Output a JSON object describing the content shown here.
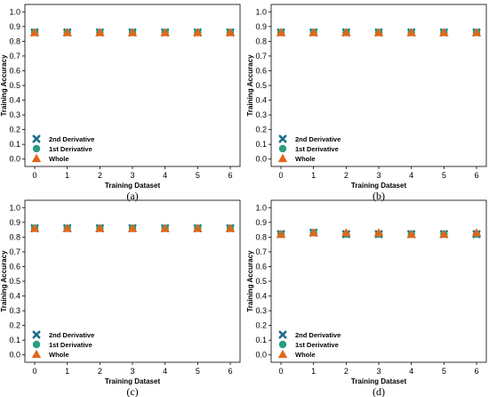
{
  "colors": {
    "second_derivative": "#1f6e8c",
    "first_derivative": "#2a9d7f",
    "whole": "#e0661a",
    "frame": "#000000"
  },
  "legend_markers": {
    "second_derivative": "x-marker",
    "first_derivative": "circle-marker",
    "whole": "triangle-marker"
  },
  "chart_data": [
    {
      "type": "scatter",
      "caption": "(a)",
      "xlabel": "Training Dataset",
      "ylabel": "Training Accuracy",
      "x": [
        0,
        1,
        2,
        3,
        4,
        5,
        6
      ],
      "xlim": [
        -0.3,
        6.3
      ],
      "ylim": [
        -0.05,
        1.05
      ],
      "yticks": [
        "0.0",
        "0.1",
        "0.2",
        "0.3",
        "0.4",
        "0.5",
        "0.6",
        "0.7",
        "0.8",
        "0.9",
        "1.0"
      ],
      "grid": false,
      "legend_position": "lower-left",
      "series": [
        {
          "name": "2nd Derivative",
          "marker": "x",
          "values": [
            0.86,
            0.86,
            0.86,
            0.86,
            0.86,
            0.86,
            0.86
          ]
        },
        {
          "name": "1st Derivative",
          "marker": "circle",
          "values": [
            0.86,
            0.86,
            0.86,
            0.86,
            0.86,
            0.86,
            0.86
          ]
        },
        {
          "name": "Whole",
          "marker": "triangle",
          "values": [
            0.86,
            0.86,
            0.86,
            0.86,
            0.86,
            0.86,
            0.86
          ]
        }
      ]
    },
    {
      "type": "scatter",
      "caption": "(b)",
      "xlabel": "Training Dataset",
      "ylabel": "Training Accuracy",
      "x": [
        0,
        1,
        2,
        3,
        4,
        5,
        6
      ],
      "xlim": [
        -0.3,
        6.3
      ],
      "ylim": [
        -0.05,
        1.05
      ],
      "yticks": [
        "0.0",
        "0.1",
        "0.2",
        "0.3",
        "0.4",
        "0.5",
        "0.6",
        "0.7",
        "0.8",
        "0.9",
        "1.0"
      ],
      "grid": false,
      "legend_position": "lower-left",
      "series": [
        {
          "name": "2nd Derivative",
          "marker": "x",
          "values": [
            0.86,
            0.86,
            0.86,
            0.86,
            0.86,
            0.86,
            0.86
          ]
        },
        {
          "name": "1st Derivative",
          "marker": "circle",
          "values": [
            0.86,
            0.86,
            0.86,
            0.86,
            0.86,
            0.86,
            0.86
          ]
        },
        {
          "name": "Whole",
          "marker": "triangle",
          "values": [
            0.86,
            0.86,
            0.86,
            0.86,
            0.86,
            0.86,
            0.86
          ]
        }
      ]
    },
    {
      "type": "scatter",
      "caption": "(c)",
      "xlabel": "Training Dataset",
      "ylabel": "Training Accuracy",
      "x": [
        0,
        1,
        2,
        3,
        4,
        5,
        6
      ],
      "xlim": [
        -0.3,
        6.3
      ],
      "ylim": [
        -0.05,
        1.05
      ],
      "yticks": [
        "0.0",
        "0.1",
        "0.2",
        "0.3",
        "0.4",
        "0.5",
        "0.6",
        "0.7",
        "0.8",
        "0.9",
        "1.0"
      ],
      "grid": false,
      "legend_position": "lower-left",
      "series": [
        {
          "name": "2nd Derivative",
          "marker": "x",
          "values": [
            0.86,
            0.86,
            0.86,
            0.86,
            0.86,
            0.86,
            0.86
          ]
        },
        {
          "name": "1st Derivative",
          "marker": "circle",
          "values": [
            0.86,
            0.86,
            0.86,
            0.86,
            0.86,
            0.86,
            0.86
          ]
        },
        {
          "name": "Whole",
          "marker": "triangle",
          "values": [
            0.86,
            0.86,
            0.86,
            0.86,
            0.86,
            0.86,
            0.86
          ]
        }
      ]
    },
    {
      "type": "scatter",
      "caption": "(d)",
      "xlabel": "Training Dataset",
      "ylabel": "Training Accuracy",
      "x": [
        0,
        1,
        2,
        3,
        4,
        5,
        6
      ],
      "xlim": [
        -0.3,
        6.3
      ],
      "ylim": [
        -0.05,
        1.05
      ],
      "yticks": [
        "0.0",
        "0.1",
        "0.2",
        "0.3",
        "0.4",
        "0.5",
        "0.6",
        "0.7",
        "0.8",
        "0.9",
        "1.0"
      ],
      "grid": false,
      "legend_position": "lower-left",
      "series": [
        {
          "name": "2nd Derivative",
          "marker": "x",
          "values": [
            0.82,
            0.83,
            0.82,
            0.82,
            0.82,
            0.82,
            0.82
          ]
        },
        {
          "name": "1st Derivative",
          "marker": "circle",
          "values": [
            0.82,
            0.83,
            0.82,
            0.82,
            0.82,
            0.82,
            0.82
          ]
        },
        {
          "name": "Whole",
          "marker": "triangle",
          "values": [
            0.82,
            0.83,
            0.83,
            0.83,
            0.82,
            0.82,
            0.83
          ]
        }
      ]
    }
  ]
}
